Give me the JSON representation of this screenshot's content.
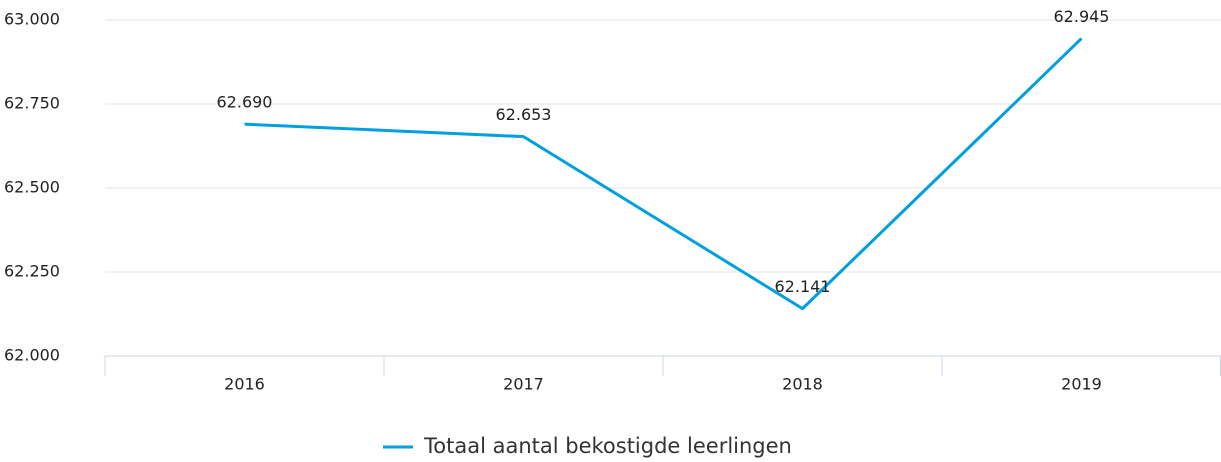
{
  "chart_data": {
    "type": "line",
    "categories": [
      "2016",
      "2017",
      "2018",
      "2019"
    ],
    "series": [
      {
        "name": "Totaal aantal bekostigde leerlingen",
        "color": "#009fdf",
        "values": [
          62690,
          62653,
          62141,
          62945
        ],
        "value_labels": [
          "62.690",
          "62.653",
          "62.141",
          "62.945"
        ]
      }
    ],
    "ylim": [
      62000,
      63000
    ],
    "yticks": [
      {
        "value": 62000,
        "label": "62.000"
      },
      {
        "value": 62250,
        "label": "62.250"
      },
      {
        "value": 62500,
        "label": "62.500"
      },
      {
        "value": 62750,
        "label": "62.750"
      },
      {
        "value": 63000,
        "label": "63.000"
      }
    ],
    "grid": true,
    "legend": "bottom"
  }
}
